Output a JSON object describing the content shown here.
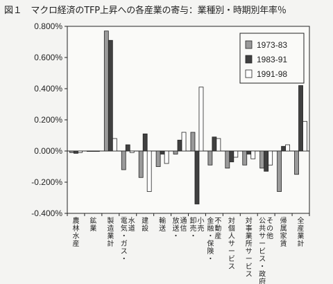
{
  "figure": {
    "title": "図１　マクロ経済のTFP上昇への各産業の寄与：業種別・時期別年率％"
  },
  "chart_data": {
    "type": "bar",
    "title": "図１　マクロ経済のTFP上昇への各産業の寄与：業種別・時期別年率％",
    "xlabel": "",
    "ylabel": "",
    "ylim": [
      -0.004,
      0.008
    ],
    "y_ticks": [
      -0.004,
      -0.002,
      0.0,
      0.002,
      0.004,
      0.006,
      0.008
    ],
    "y_tick_labels": [
      "-0.400%",
      "-0.200%",
      "0.000%",
      "0.200%",
      "0.400%",
      "0.600%",
      "0.800%"
    ],
    "grid": false,
    "legend_position": "top-right",
    "categories": [
      "農林水産",
      "鉱業",
      "製造業計",
      "電気・ガス・水道",
      "建設",
      "輸送",
      "放送・通信",
      "卸売・小売",
      "金融・保険・不動産",
      "対個人サービス",
      "対事業所サービス",
      "公共サービス・政府・その他",
      "帰属家賃",
      "全産業計"
    ],
    "series": [
      {
        "name": "1973-83",
        "color": "#9a9a9a",
        "values": [
          -0.0001,
          0.0,
          0.0077,
          -0.0012,
          -0.0017,
          -0.001,
          -0.0002,
          0.0012,
          -0.0009,
          -0.0011,
          -0.0009,
          -0.0011,
          -0.0026,
          -0.0015
        ]
      },
      {
        "name": "1983-91",
        "color": "#404040",
        "values": [
          -0.00015,
          0.0,
          0.0071,
          0.0004,
          0.0011,
          -0.0002,
          0.0007,
          -0.0034,
          0.0009,
          -0.0007,
          -0.0002,
          -0.0013,
          0.0003,
          0.0042
        ]
      },
      {
        "name": "1991-98",
        "color": "#ffffff",
        "values": [
          -0.0001,
          0.0,
          0.0008,
          -0.0001,
          -0.0026,
          -0.0008,
          0.0012,
          0.0041,
          0.0008,
          -0.0004,
          -0.0005,
          -0.0009,
          0.0004,
          0.0019
        ]
      }
    ]
  }
}
